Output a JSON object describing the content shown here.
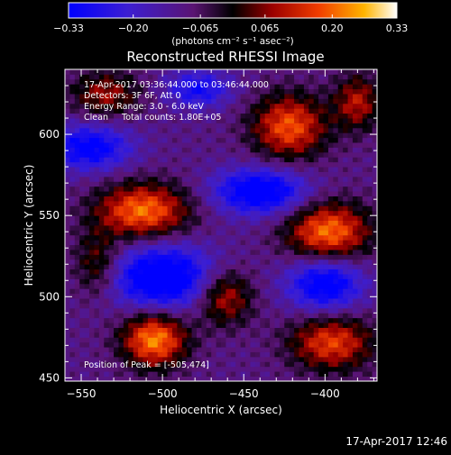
{
  "chart_data": {
    "type": "heatmap",
    "title": "Reconstructed RHESSI Image",
    "xlabel": "Heliocentric X (arcsec)",
    "ylabel": "Heliocentric Y (arcsec)",
    "xlim": [
      -560,
      -368
    ],
    "ylim": [
      448,
      640
    ],
    "xticks": [
      -550,
      -500,
      -450,
      -400
    ],
    "yticks": [
      450,
      500,
      550,
      600
    ],
    "colorbar": {
      "ticks": [
        "-0.33",
        "-0.20",
        "-0.065",
        "0.065",
        "0.20",
        "0.33"
      ],
      "range": [
        -0.33,
        0.33
      ],
      "unit_label": "(photons cm⁻² s⁻¹ asec⁻²)"
    },
    "annotations": [
      "17-Apr-2017 03:36:44.000 to 03:46:44.000",
      "Detectors: 3F 6F, Att 0",
      "Energy Range: 3.0 - 6.0 keV",
      "Clean     Total counts: 1.80E+05"
    ],
    "peak_label": "Position of Peak = [-505,474]",
    "peak": {
      "x": -505,
      "y": 474
    },
    "sources": [
      {
        "x": -505,
        "y": 474,
        "sx": 14,
        "sy": 12,
        "amp": 0.33
      },
      {
        "x": -512,
        "y": 553,
        "sx": 20,
        "sy": 12,
        "amp": 0.31
      },
      {
        "x": -398,
        "y": 540,
        "sx": 18,
        "sy": 13,
        "amp": 0.31
      },
      {
        "x": -422,
        "y": 605,
        "sx": 16,
        "sy": 14,
        "amp": 0.28
      },
      {
        "x": -396,
        "y": 472,
        "sx": 18,
        "sy": 12,
        "amp": 0.26
      },
      {
        "x": -462,
        "y": 500,
        "sx": 12,
        "sy": 12,
        "amp": 0.22
      },
      {
        "x": -535,
        "y": 625,
        "sx": 15,
        "sy": 10,
        "amp": 0.18
      },
      {
        "x": -380,
        "y": 620,
        "sx": 10,
        "sy": 12,
        "amp": 0.2
      },
      {
        "x": -540,
        "y": 520,
        "sx": 10,
        "sy": 14,
        "amp": 0.16
      }
    ],
    "negative_regions": [
      {
        "x": -500,
        "y": 512,
        "sx": 22,
        "sy": 14,
        "amp": -0.33
      },
      {
        "x": -545,
        "y": 592,
        "sx": 18,
        "sy": 10,
        "amp": -0.25
      },
      {
        "x": -440,
        "y": 565,
        "sx": 20,
        "sy": 10,
        "amp": -0.3
      },
      {
        "x": -400,
        "y": 508,
        "sx": 16,
        "sy": 12,
        "amp": -0.28
      },
      {
        "x": -478,
        "y": 628,
        "sx": 14,
        "sy": 8,
        "amp": -0.2
      }
    ]
  },
  "footer": {
    "timestamp": "17-Apr-2017 12:46"
  }
}
